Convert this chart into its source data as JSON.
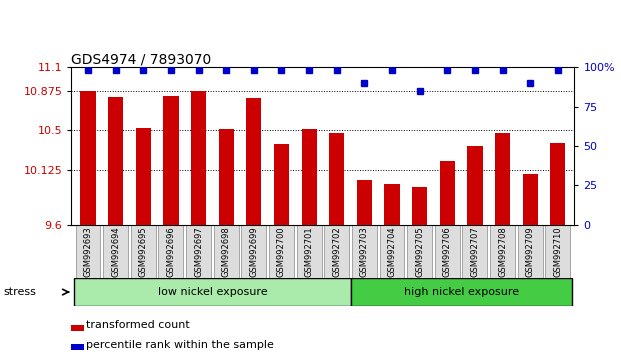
{
  "title": "GDS4974 / 7893070",
  "categories": [
    "GSM992693",
    "GSM992694",
    "GSM992695",
    "GSM992696",
    "GSM992697",
    "GSM992698",
    "GSM992699",
    "GSM992700",
    "GSM992701",
    "GSM992702",
    "GSM992703",
    "GSM992704",
    "GSM992705",
    "GSM992706",
    "GSM992707",
    "GSM992708",
    "GSM992709",
    "GSM992710"
  ],
  "bar_values": [
    10.87,
    10.82,
    10.52,
    10.83,
    10.87,
    10.51,
    10.81,
    10.37,
    10.51,
    10.47,
    10.03,
    9.99,
    9.96,
    10.21,
    10.35,
    10.47,
    10.08,
    10.38
  ],
  "dot_values": [
    97,
    97,
    97,
    97,
    97,
    97,
    97,
    97,
    97,
    97,
    90,
    97,
    85,
    97,
    97,
    97,
    90,
    97
  ],
  "ylim_left": [
    9.6,
    11.1
  ],
  "ylim_right": [
    0,
    100
  ],
  "yticks_left": [
    9.6,
    10.125,
    10.5,
    10.875,
    11.1
  ],
  "yticks_right": [
    0,
    25,
    50,
    75,
    100
  ],
  "bar_color": "#cc0000",
  "dot_color": "#0000cc",
  "grid_levels": [
    10.875,
    10.5,
    10.125
  ],
  "group1_label": "low nickel exposure",
  "group2_label": "high nickel exposure",
  "group1_count": 10,
  "group2_count": 8,
  "stress_label": "stress",
  "legend1": "transformed count",
  "legend2": "percentile rank within the sample",
  "tick_label_color": "#cc0000",
  "label_bg": "#dddddd",
  "group1_bg": "#aaeaaa",
  "group2_bg": "#44cc44"
}
